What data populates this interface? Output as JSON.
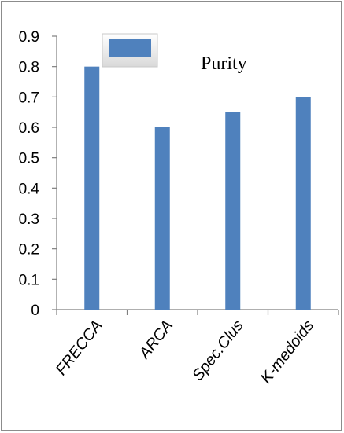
{
  "chart_data": {
    "type": "bar",
    "categories": [
      "FRECCA",
      "ARCA",
      "Spec.Clus",
      "K-medoids"
    ],
    "series": [
      {
        "name": "Purity",
        "values": [
          0.8,
          0.6,
          0.65,
          0.7
        ],
        "color": "#4f81bd"
      }
    ],
    "yticks": [
      "0",
      "0.1",
      "0.2",
      "0.3",
      "0.4",
      "0.5",
      "0.6",
      "0.7",
      "0.8",
      "0.9"
    ],
    "ylim": [
      0,
      0.9
    ],
    "grid": false,
    "legend_position": "top-center",
    "title": "",
    "xlabel": "",
    "ylabel": ""
  }
}
